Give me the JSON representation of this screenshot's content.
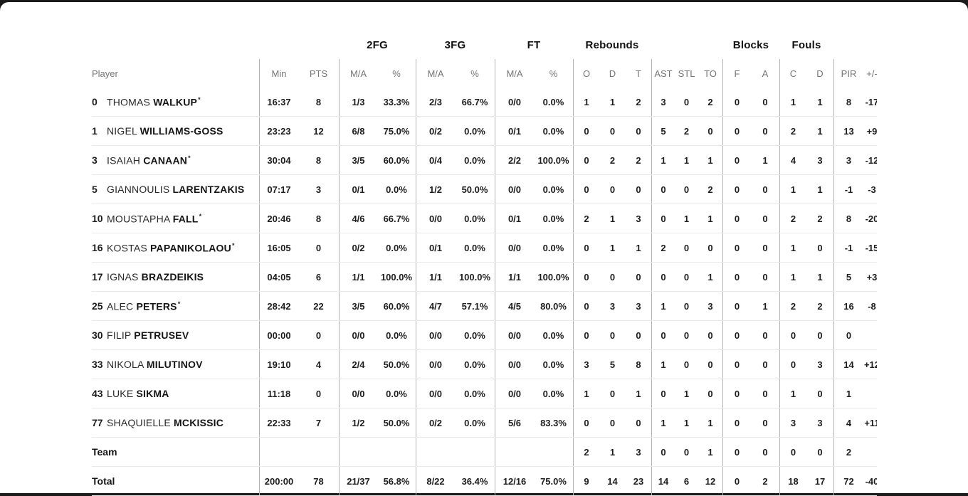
{
  "page": {
    "background_color": "#1b1b1b",
    "card_color": "#ffffff",
    "divider_color": "#b3b3b3",
    "row_line_color": "#eaeaea",
    "header_text_color": "#757575",
    "data_text_color": "#1d1d1d"
  },
  "table": {
    "group_headers": [
      {
        "label": "",
        "span": 3
      },
      {
        "label": "2FG",
        "span": 2
      },
      {
        "label": "3FG",
        "span": 2
      },
      {
        "label": "FT",
        "span": 2
      },
      {
        "label": "Rebounds",
        "span": 3
      },
      {
        "label": "",
        "span": 3
      },
      {
        "label": "Blocks",
        "span": 2
      },
      {
        "label": "Fouls",
        "span": 2
      },
      {
        "label": "",
        "span": 2
      }
    ],
    "columns": [
      "Player",
      "Min",
      "PTS",
      "M/A",
      "%",
      "M/A",
      "%",
      "M/A",
      "%",
      "O",
      "D",
      "T",
      "AST",
      "STL",
      "TO",
      "F",
      "A",
      "C",
      "D",
      "PIR",
      "+/-"
    ],
    "stat_keys": [
      "min",
      "pts",
      "2fg-ma",
      "2fg-pct",
      "3fg-ma",
      "3fg-pct",
      "ft-ma",
      "ft-pct",
      "reb-o",
      "reb-d",
      "reb-t",
      "ast",
      "stl",
      "to",
      "blk-fv",
      "blk-ag",
      "foul-cm",
      "foul-rv",
      "pir",
      "plus-minus"
    ],
    "players": [
      {
        "number": "0",
        "first": "THOMAS",
        "last": "WALKUP",
        "starter": true,
        "stats": [
          "16:37",
          "8",
          "1/3",
          "33.3%",
          "2/3",
          "66.7%",
          "0/0",
          "0.0%",
          "1",
          "1",
          "2",
          "3",
          "0",
          "2",
          "0",
          "0",
          "1",
          "1",
          "8",
          "-17"
        ]
      },
      {
        "number": "1",
        "first": "NIGEL",
        "last": "WILLIAMS-GOSS",
        "starter": false,
        "stats": [
          "23:23",
          "12",
          "6/8",
          "75.0%",
          "0/2",
          "0.0%",
          "0/1",
          "0.0%",
          "0",
          "0",
          "0",
          "5",
          "2",
          "0",
          "0",
          "0",
          "2",
          "1",
          "13",
          "+9"
        ]
      },
      {
        "number": "3",
        "first": "ISAIAH",
        "last": "CANAAN",
        "starter": true,
        "stats": [
          "30:04",
          "8",
          "3/5",
          "60.0%",
          "0/4",
          "0.0%",
          "2/2",
          "100.0%",
          "0",
          "2",
          "2",
          "1",
          "1",
          "1",
          "0",
          "1",
          "4",
          "3",
          "3",
          "-12"
        ]
      },
      {
        "number": "5",
        "first": "GIANNOULIS",
        "last": "LARENTZAKIS",
        "starter": false,
        "stats": [
          "07:17",
          "3",
          "0/1",
          "0.0%",
          "1/2",
          "50.0%",
          "0/0",
          "0.0%",
          "0",
          "0",
          "0",
          "0",
          "0",
          "2",
          "0",
          "0",
          "1",
          "1",
          "-1",
          "-3"
        ]
      },
      {
        "number": "10",
        "first": "MOUSTAPHA",
        "last": "FALL",
        "starter": true,
        "stats": [
          "20:46",
          "8",
          "4/6",
          "66.7%",
          "0/0",
          "0.0%",
          "0/1",
          "0.0%",
          "2",
          "1",
          "3",
          "0",
          "1",
          "1",
          "0",
          "0",
          "2",
          "2",
          "8",
          "-20"
        ]
      },
      {
        "number": "16",
        "first": "KOSTAS",
        "last": "PAPANIKOLAOU",
        "starter": true,
        "stats": [
          "16:05",
          "0",
          "0/2",
          "0.0%",
          "0/1",
          "0.0%",
          "0/0",
          "0.0%",
          "0",
          "1",
          "1",
          "2",
          "0",
          "0",
          "0",
          "0",
          "1",
          "0",
          "-1",
          "-15"
        ]
      },
      {
        "number": "17",
        "first": "IGNAS",
        "last": "BRAZDEIKIS",
        "starter": false,
        "stats": [
          "04:05",
          "6",
          "1/1",
          "100.0%",
          "1/1",
          "100.0%",
          "1/1",
          "100.0%",
          "0",
          "0",
          "0",
          "0",
          "0",
          "1",
          "0",
          "0",
          "1",
          "1",
          "5",
          "+3"
        ]
      },
      {
        "number": "25",
        "first": "ALEC",
        "last": "PETERS",
        "starter": true,
        "stats": [
          "28:42",
          "22",
          "3/5",
          "60.0%",
          "4/7",
          "57.1%",
          "4/5",
          "80.0%",
          "0",
          "3",
          "3",
          "1",
          "0",
          "3",
          "0",
          "1",
          "2",
          "2",
          "16",
          "-8"
        ]
      },
      {
        "number": "30",
        "first": "FILIP",
        "last": "PETRUSEV",
        "starter": false,
        "stats": [
          "00:00",
          "0",
          "0/0",
          "0.0%",
          "0/0",
          "0.0%",
          "0/0",
          "0.0%",
          "0",
          "0",
          "0",
          "0",
          "0",
          "0",
          "0",
          "0",
          "0",
          "0",
          "0",
          ""
        ]
      },
      {
        "number": "33",
        "first": "NIKOLA",
        "last": "MILUTINOV",
        "starter": false,
        "stats": [
          "19:10",
          "4",
          "2/4",
          "50.0%",
          "0/0",
          "0.0%",
          "0/0",
          "0.0%",
          "3",
          "5",
          "8",
          "1",
          "0",
          "0",
          "0",
          "0",
          "0",
          "3",
          "14",
          "+12"
        ]
      },
      {
        "number": "43",
        "first": "LUKE",
        "last": "SIKMA",
        "starter": false,
        "stats": [
          "11:18",
          "0",
          "0/0",
          "0.0%",
          "0/0",
          "0.0%",
          "0/0",
          "0.0%",
          "1",
          "0",
          "1",
          "0",
          "1",
          "0",
          "0",
          "0",
          "1",
          "0",
          "1",
          ""
        ]
      },
      {
        "number": "77",
        "first": "SHAQUIELLE",
        "last": "MCKISSIC",
        "starter": false,
        "stats": [
          "22:33",
          "7",
          "1/2",
          "50.0%",
          "0/2",
          "0.0%",
          "5/6",
          "83.3%",
          "0",
          "0",
          "0",
          "1",
          "1",
          "1",
          "0",
          "0",
          "3",
          "3",
          "4",
          "+11"
        ]
      }
    ],
    "team_row": {
      "label": "Team",
      "stats": [
        "",
        "",
        "",
        "",
        "",
        "",
        "",
        "",
        "2",
        "1",
        "3",
        "0",
        "0",
        "1",
        "0",
        "0",
        "0",
        "0",
        "2",
        ""
      ]
    },
    "total_row": {
      "label": "Total",
      "stats": [
        "200:00",
        "78",
        "21/37",
        "56.8%",
        "8/22",
        "36.4%",
        "12/16",
        "75.0%",
        "9",
        "14",
        "23",
        "14",
        "6",
        "12",
        "0",
        "2",
        "18",
        "17",
        "72",
        "-40"
      ]
    }
  }
}
